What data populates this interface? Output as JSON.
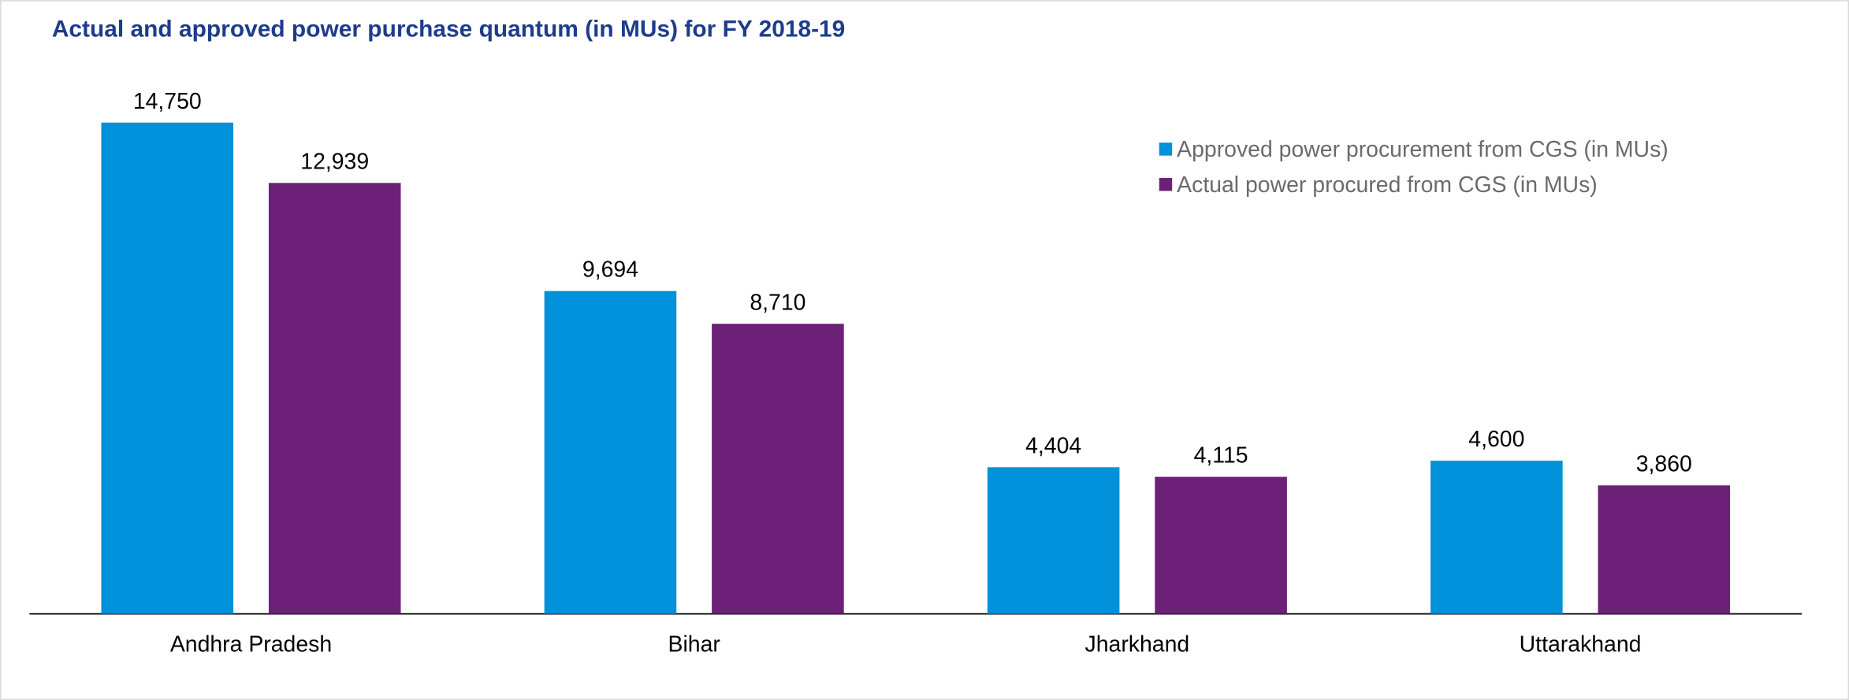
{
  "chart_data": {
    "type": "bar",
    "title": "Actual and approved power purchase quantum (in MUs) for FY 2018-19",
    "categories": [
      "Andhra Pradesh",
      "Bihar",
      "Jharkhand",
      "Uttarakhand"
    ],
    "series": [
      {
        "name": "Approved power procurement from CGS (in MUs)",
        "color": "#0091da",
        "values": [
          14750,
          9694,
          4404,
          4600
        ],
        "value_labels": [
          "14,750",
          "9,694",
          "4,404",
          "4,600"
        ]
      },
      {
        "name": "Actual power procured from CGS (in MUs)",
        "color": "#6d2077",
        "values": [
          12939,
          8710,
          4115,
          3860
        ],
        "value_labels": [
          "12,939",
          "8,710",
          "4,115",
          "3,860"
        ]
      }
    ],
    "legend": "top-right"
  }
}
